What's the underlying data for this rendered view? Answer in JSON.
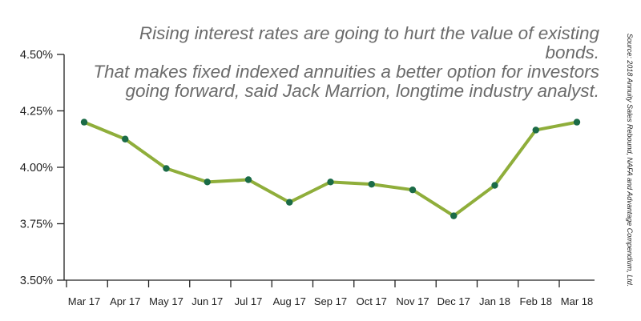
{
  "quote": {
    "line1": "Rising interest rates are going to hurt the value of existing bonds.",
    "line2": "That makes fixed indexed annuities a better option for investors",
    "line3": "going forward, said Jack Marrion, longtime industry analyst."
  },
  "source": "Source: 2018 Annuity Sales Rebound, NAFA and Advantage Compendium, Ltd.",
  "chart_data": {
    "type": "line",
    "title": "",
    "xlabel": "",
    "ylabel": "",
    "categories": [
      "Mar 17",
      "Apr 17",
      "May 17",
      "Jun 17",
      "Jul 17",
      "Aug 17",
      "Sep 17",
      "Oct 17",
      "Nov 17",
      "Dec 17",
      "Jan 18",
      "Feb 18",
      "Mar 18"
    ],
    "series": [
      {
        "values": [
          4.2,
          4.125,
          3.995,
          3.935,
          3.945,
          3.845,
          3.935,
          3.925,
          3.9,
          3.785,
          3.92,
          4.165,
          4.2
        ]
      }
    ],
    "yticks": [
      "3.50%",
      "3.75%",
      "4.00%",
      "4.25%",
      "4.50%"
    ],
    "ytick_values": [
      3.5,
      3.75,
      4.0,
      4.25,
      4.5
    ],
    "ylim": [
      3.5,
      4.5
    ],
    "grid": false,
    "line_color": "#8fae3b",
    "marker_color": "#1b6b47",
    "axis_color": "#222222"
  }
}
